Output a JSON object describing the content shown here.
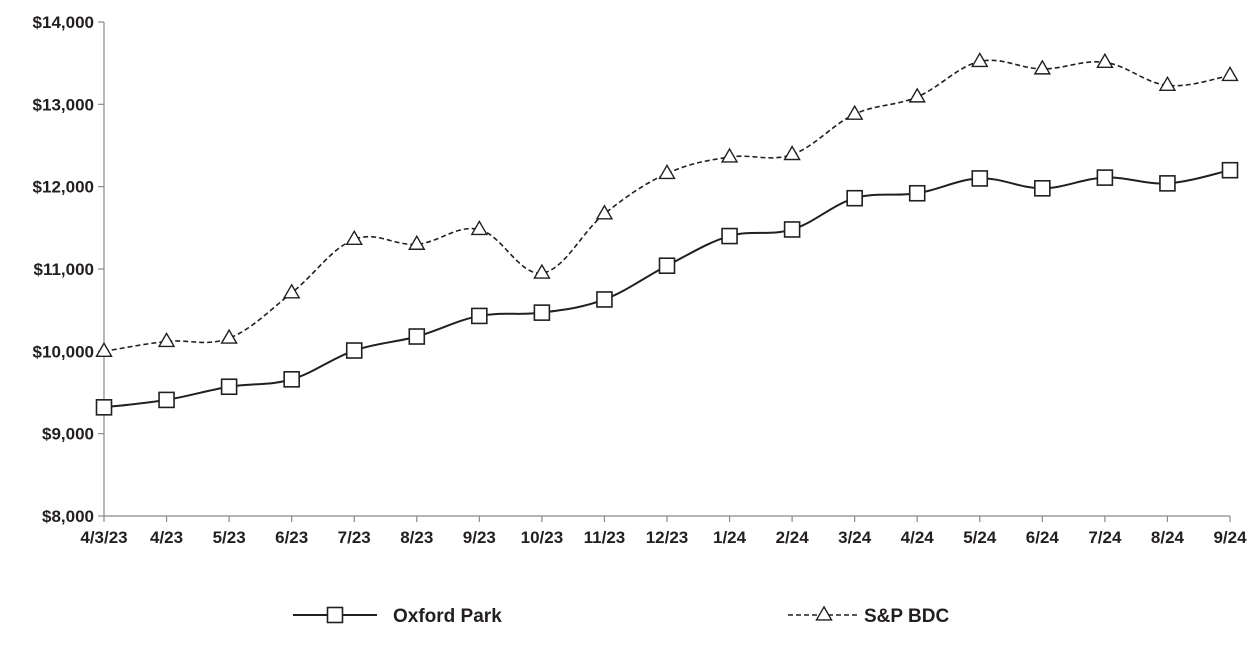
{
  "chart_data": {
    "type": "line",
    "categories": [
      "4/3/23",
      "4/23",
      "5/23",
      "6/23",
      "7/23",
      "8/23",
      "9/23",
      "10/23",
      "11/23",
      "12/23",
      "1/24",
      "2/24",
      "3/24",
      "4/24",
      "5/24",
      "6/24",
      "7/24",
      "8/24",
      "9/24"
    ],
    "y_ticks": [
      "$8,000",
      "$9,000",
      "$10,000",
      "$11,000",
      "$12,000",
      "$13,000",
      "$14,000"
    ],
    "ylim": [
      8000,
      14000
    ],
    "grid": false,
    "legend_position": "bottom",
    "series": [
      {
        "name": "Oxford Park",
        "line_style": "solid",
        "marker": "square",
        "color": "#231f20",
        "values": [
          9320,
          9410,
          9570,
          9660,
          10010,
          10180,
          10430,
          10470,
          10630,
          11040,
          11400,
          11480,
          11860,
          11920,
          12100,
          11980,
          12110,
          12040,
          12200
        ]
      },
      {
        "name": "S&P BDC",
        "line_style": "dashed",
        "marker": "triangle",
        "color": "#231f20",
        "values": [
          10000,
          10120,
          10160,
          10710,
          11360,
          11300,
          11480,
          10950,
          11670,
          12160,
          12360,
          12390,
          12880,
          13090,
          13520,
          13430,
          13510,
          13230,
          13350
        ]
      }
    ]
  }
}
